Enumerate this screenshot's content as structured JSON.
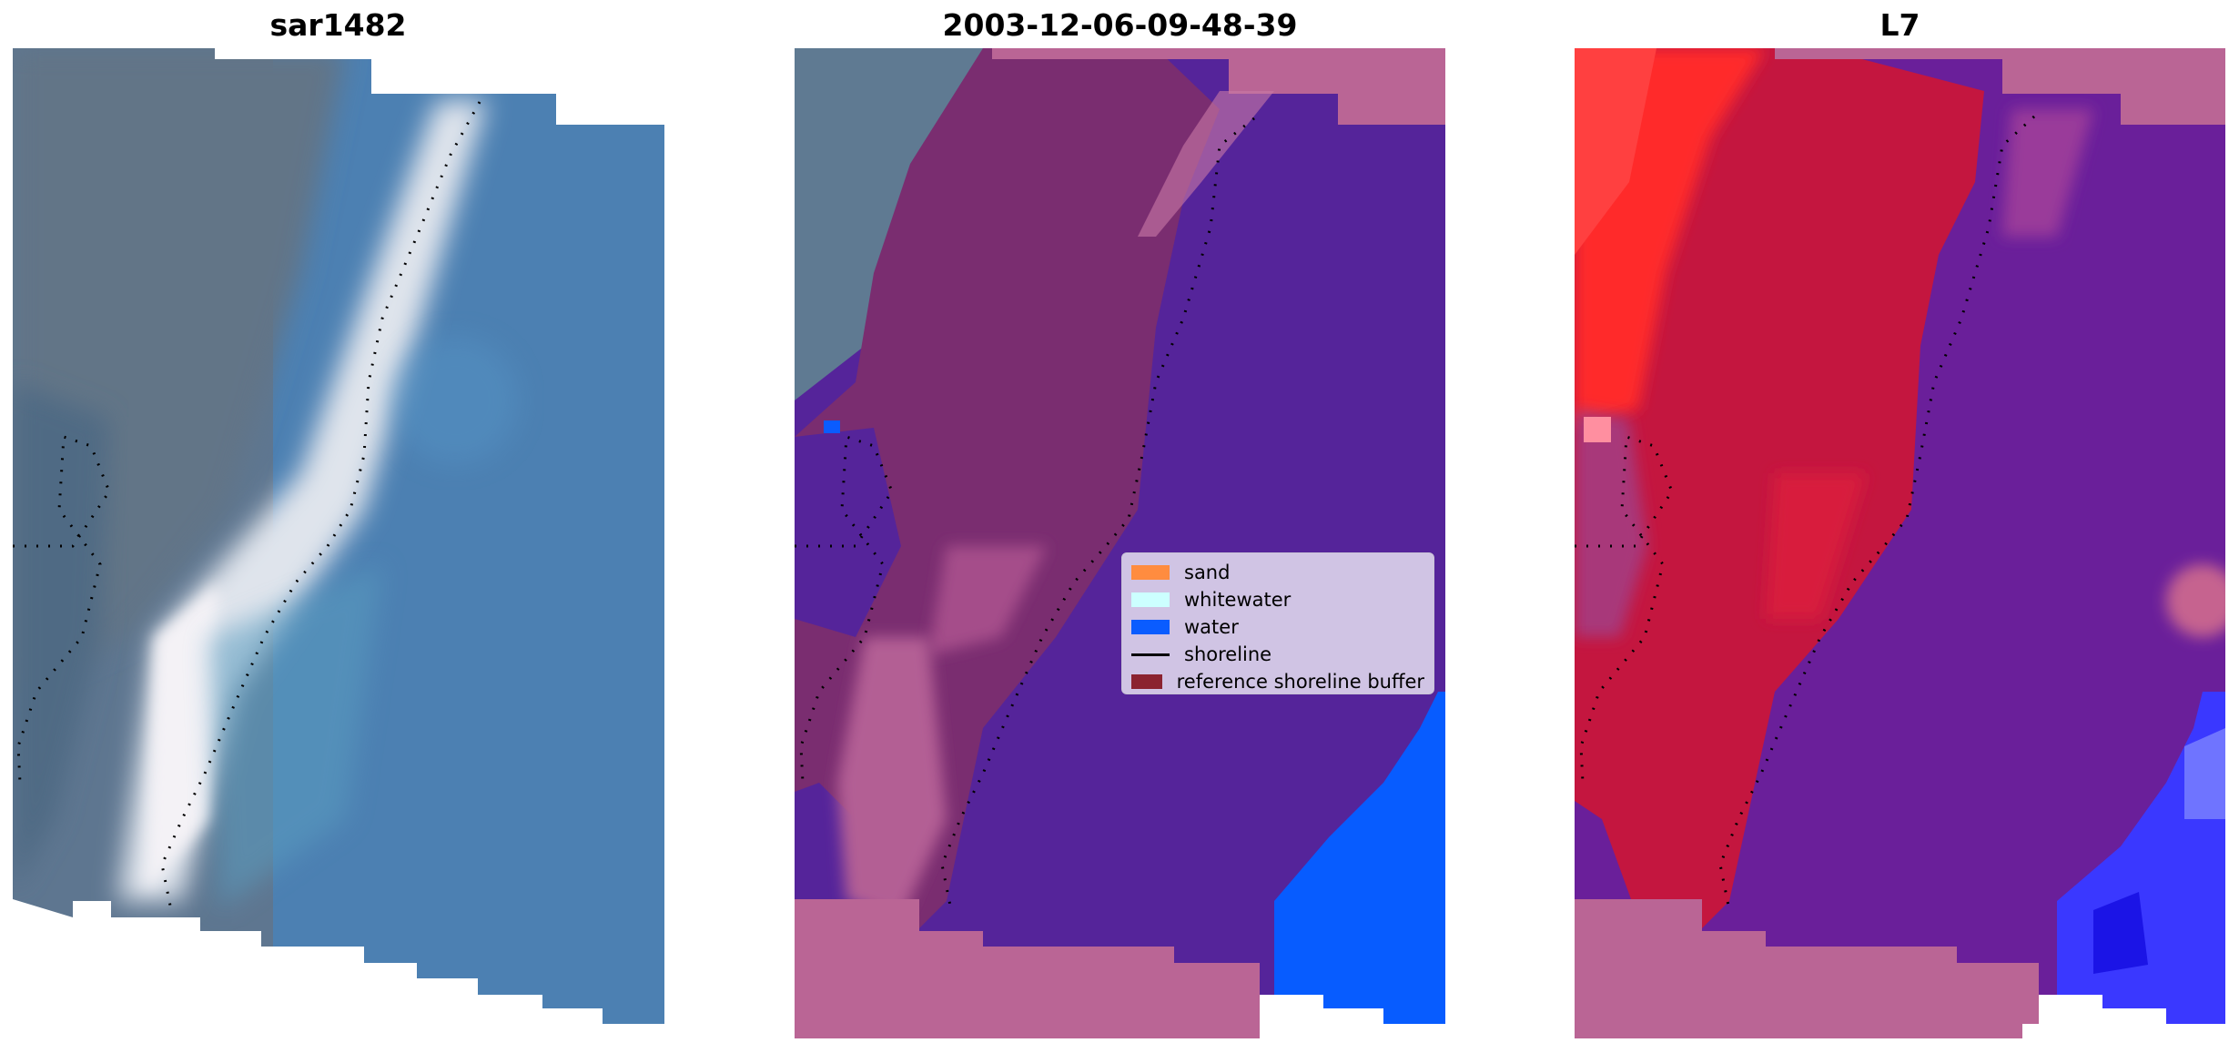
{
  "panels": [
    {
      "title": "sar1482"
    },
    {
      "title": "2003-12-06-09-48-39"
    },
    {
      "title": "L7"
    }
  ],
  "legend": {
    "items": [
      {
        "label": "sand",
        "color": "#ff8c3f"
      },
      {
        "label": "whitewater",
        "color": "#ccffff"
      },
      {
        "label": "water",
        "color": "#0a5cff"
      },
      {
        "label": "shoreline",
        "color": "#000000"
      },
      {
        "label": "reference shoreline buffer",
        "color": "#8b2330"
      }
    ]
  },
  "colors": {
    "rgb_land": "#5d7388",
    "rgb_water": "#4a7fb1",
    "rgb_whitewater": "#e6e8ee",
    "buffer_pink": "#ba6595",
    "classified_water_purple": "#55249a",
    "index_red": "#c4153f",
    "index_purple": "#6f1c9e",
    "index_blue": "#2a2cff"
  }
}
